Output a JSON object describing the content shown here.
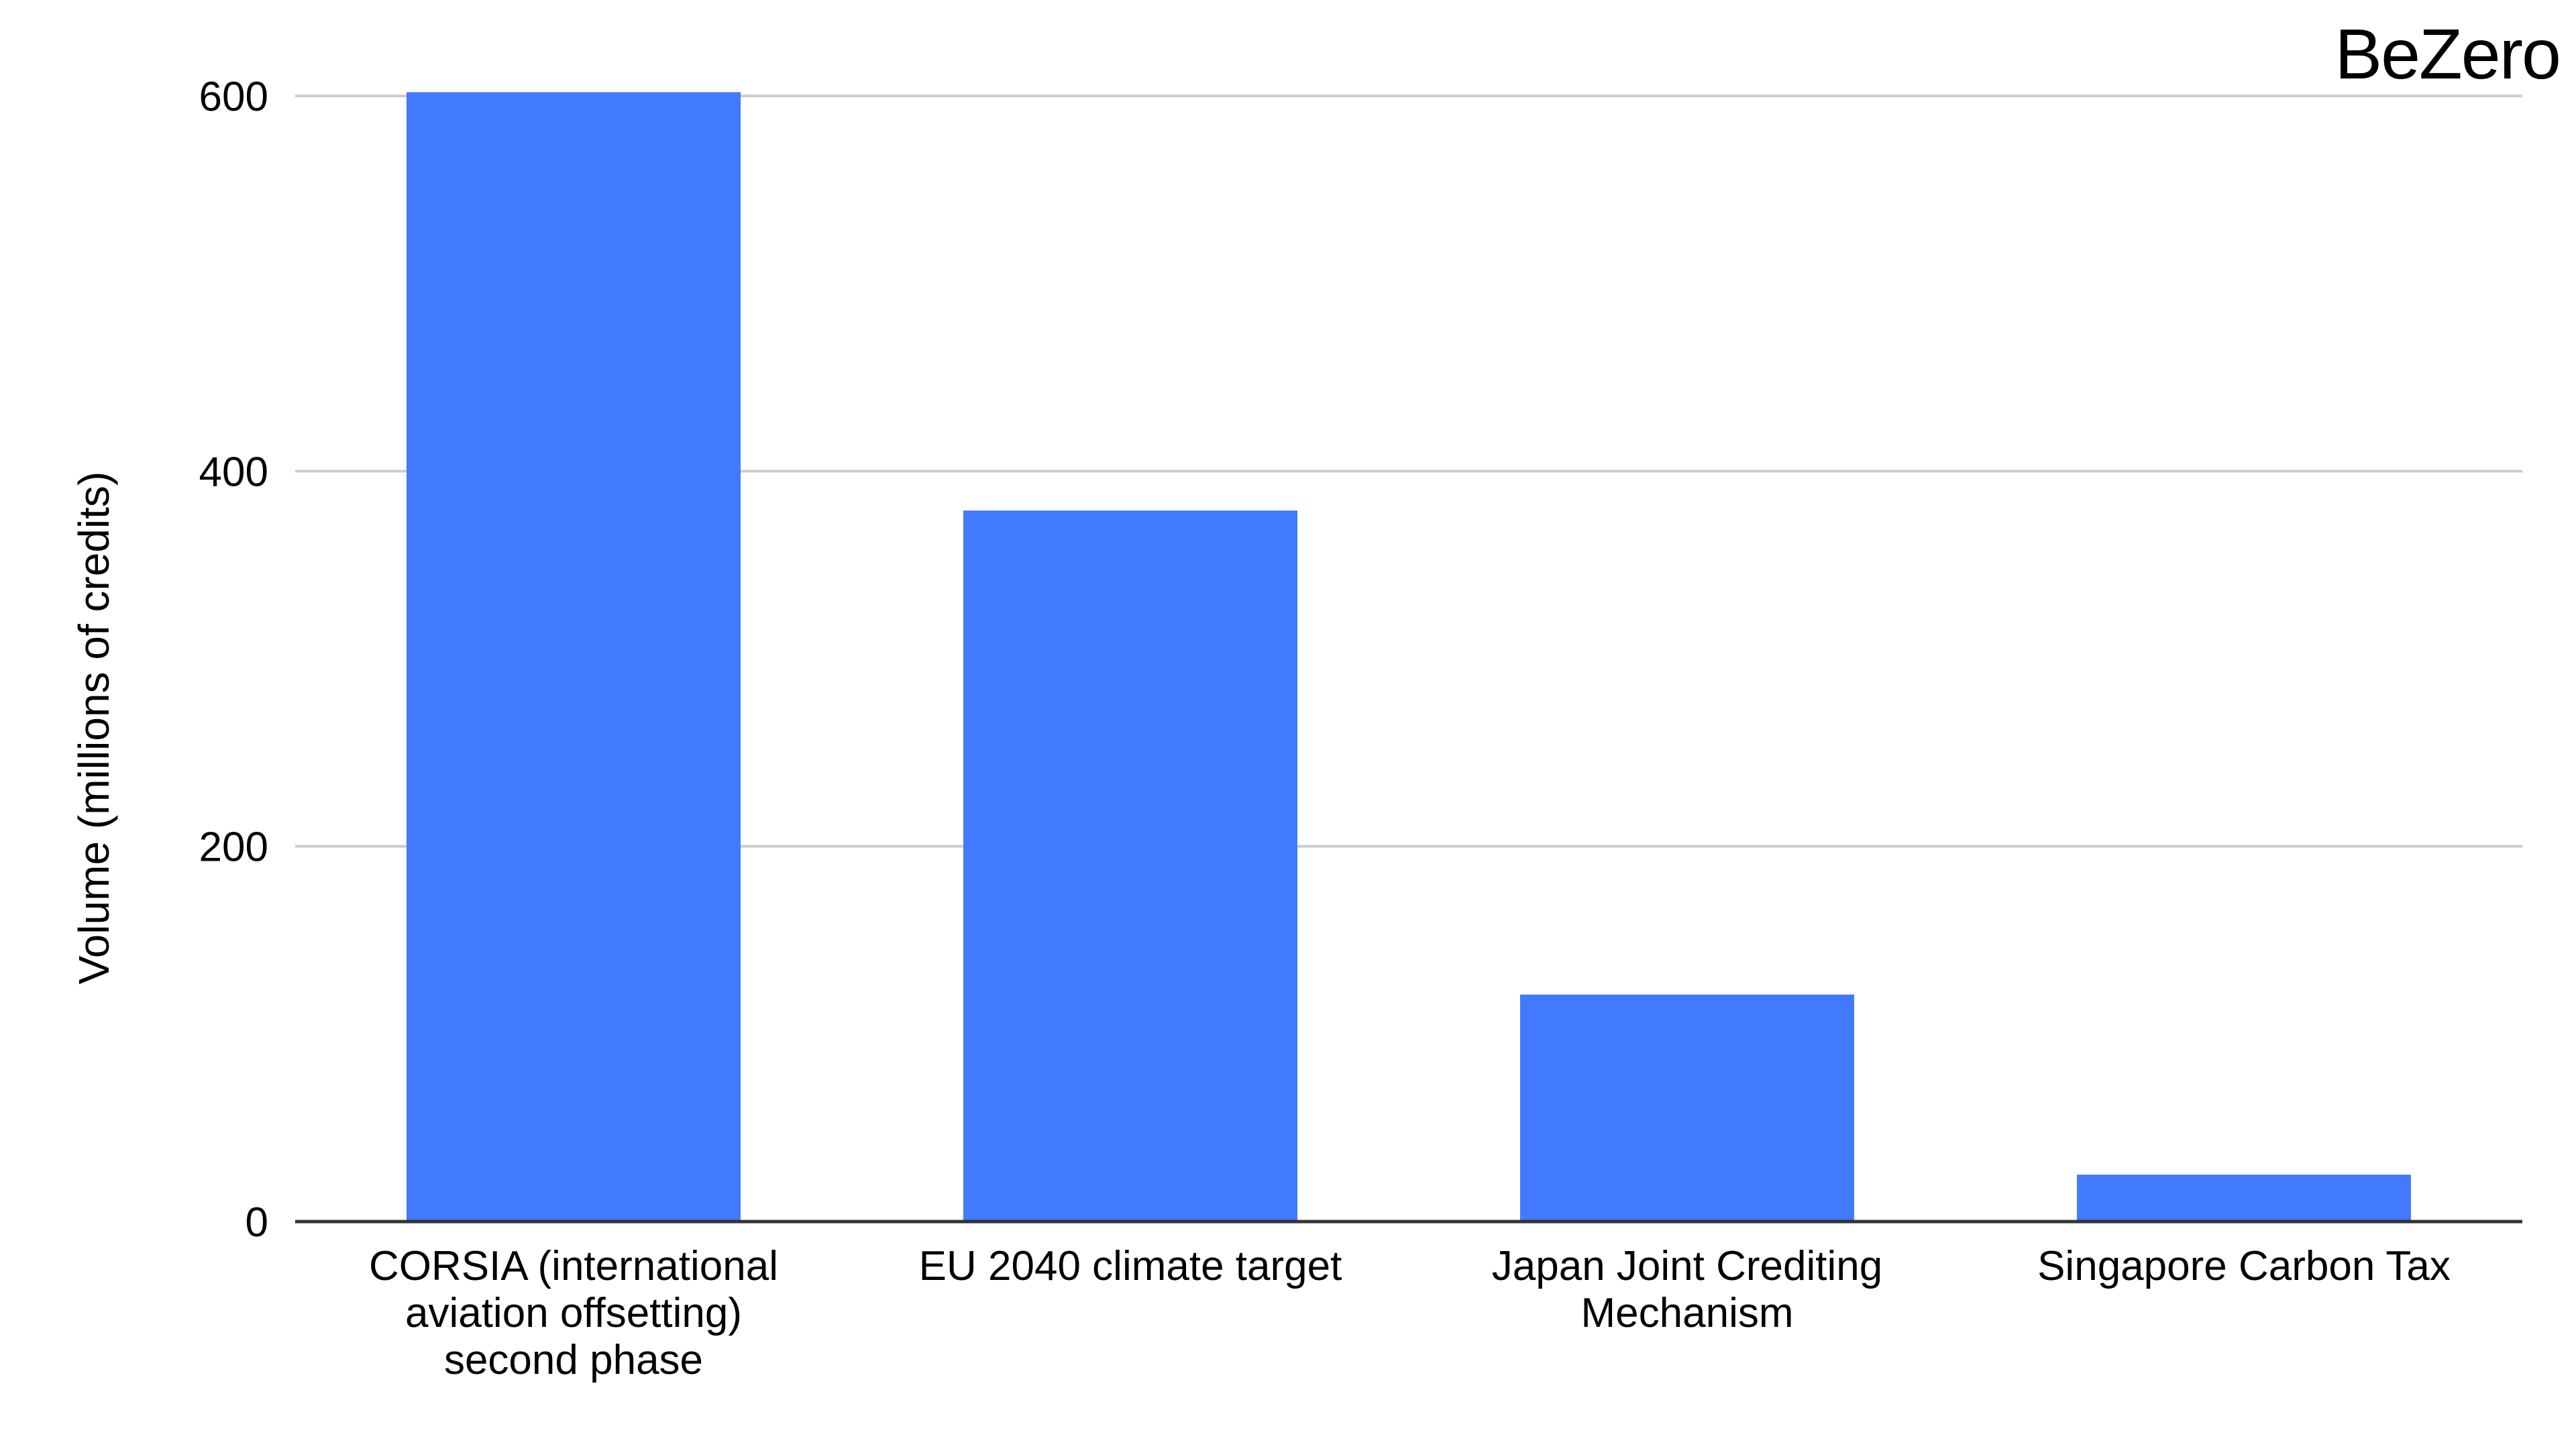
{
  "brand": {
    "logo_text": "BeZero"
  },
  "colors": {
    "bar": "#4179ff",
    "grid": "#cccccc",
    "axis": "#333333",
    "text": "#000000"
  },
  "chart_data": {
    "type": "bar",
    "title": "",
    "xlabel": "",
    "ylabel": "Volume (millions of credits)",
    "ylim": [
      0,
      600
    ],
    "yticks": [
      0,
      200,
      400,
      600
    ],
    "grid": true,
    "legend": "none",
    "categories": [
      [
        "CORSIA (international",
        "aviation offsetting)",
        "second phase"
      ],
      [
        "EU 2040 climate target"
      ],
      [
        "Japan Joint Crediting",
        "Mechanism"
      ],
      [
        "Singapore Carbon Tax"
      ]
    ],
    "values": [
      602,
      379,
      121,
      25
    ]
  }
}
